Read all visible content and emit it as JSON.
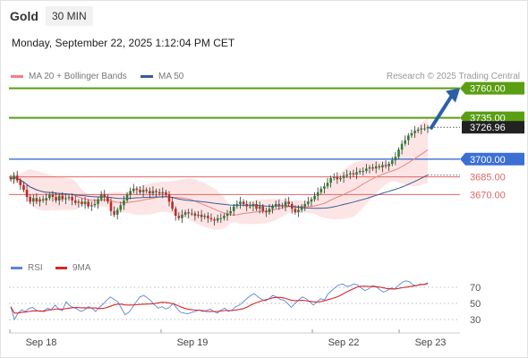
{
  "instrument": "Gold",
  "timeframe": "30 MIN",
  "datetime": "Monday, September 22, 2025 1:12:04 PM CET",
  "legend": {
    "ma20": "MA 20 + Bollinger Bands",
    "ma50": "MA 50",
    "copyright": "Research © 2025 Trading Central",
    "rsi": "RSI",
    "rsi_ma": "9MA"
  },
  "colors": {
    "resistance": "#5a9e12",
    "support_strong": "#3b6fd4",
    "support": "#e06666",
    "ma20": "#f08080",
    "ma50": "#3a5a9a",
    "band": "#fde0e0",
    "candle_up": "#2e7d32",
    "candle_down": "#c62828",
    "arrow": "#2c5fa8",
    "last_price": "#222222",
    "rsi": "#5b86d6",
    "rsi_ma": "#d62828"
  },
  "chart_data": {
    "type": "candlestick",
    "x_ticks": [
      "Sep 18",
      "Sep 19",
      "Sep 22",
      "Sep 23"
    ],
    "price_axis": {
      "min": 3615,
      "max": 3765
    },
    "levels": [
      {
        "value": 3760.0,
        "label": "3760.00",
        "kind": "resistance"
      },
      {
        "value": 3735.0,
        "label": "3735.00",
        "kind": "resistance"
      },
      {
        "value": 3700.0,
        "label": "3700.00",
        "kind": "support_strong"
      },
      {
        "value": 3685.0,
        "label": "3685.00",
        "kind": "support"
      },
      {
        "value": 3670.0,
        "label": "3670.00",
        "kind": "support"
      }
    ],
    "last_price": {
      "value": 3726.96,
      "label": "3726.96"
    },
    "close_series": [
      3683,
      3686,
      3682,
      3678,
      3674,
      3668,
      3664,
      3667,
      3664,
      3666,
      3665,
      3667,
      3670,
      3668,
      3665,
      3669,
      3666,
      3667,
      3668,
      3665,
      3663,
      3664,
      3662,
      3664,
      3660,
      3661,
      3662,
      3666,
      3670,
      3668,
      3664,
      3656,
      3653,
      3657,
      3661,
      3665,
      3670,
      3673,
      3675,
      3674,
      3672,
      3674,
      3673,
      3671,
      3673,
      3672,
      3671,
      3672,
      3670,
      3664,
      3658,
      3652,
      3650,
      3653,
      3655,
      3654,
      3654,
      3652,
      3653,
      3651,
      3652,
      3650,
      3649,
      3648,
      3650,
      3650,
      3652,
      3654,
      3656,
      3660,
      3662,
      3664,
      3662,
      3660,
      3660,
      3662,
      3658,
      3660,
      3656,
      3655,
      3658,
      3660,
      3662,
      3661,
      3660,
      3664,
      3662,
      3658,
      3655,
      3657,
      3660,
      3662,
      3664,
      3666,
      3669,
      3672,
      3675,
      3677,
      3680,
      3684,
      3685,
      3683,
      3684,
      3686,
      3687,
      3688,
      3687,
      3689,
      3690,
      3690,
      3692,
      3693,
      3692,
      3694,
      3693,
      3695,
      3694,
      3696,
      3699,
      3702,
      3708,
      3713,
      3716,
      3720,
      3722,
      3724,
      3725,
      3726,
      3726,
      3726.96
    ],
    "rsi": {
      "axis_ticks": [
        70,
        50,
        30
      ],
      "range": [
        20,
        80
      ],
      "values": [
        46,
        30,
        38,
        42,
        40,
        44,
        45,
        41,
        40,
        41,
        44,
        42,
        48,
        43,
        41,
        52,
        47,
        45,
        43,
        40,
        42,
        46,
        44,
        40,
        45,
        49,
        54,
        58,
        55,
        52,
        44,
        36,
        39,
        45,
        52,
        58,
        60,
        57,
        53,
        48,
        44,
        46,
        43,
        45,
        50,
        44,
        39,
        38,
        37,
        39,
        40,
        42,
        40,
        41,
        43,
        40,
        38,
        42,
        44,
        40,
        42,
        46,
        48,
        52,
        56,
        60,
        62,
        58,
        55,
        53,
        56,
        60,
        58,
        55,
        54,
        50,
        45,
        50,
        54,
        58,
        56,
        52,
        48,
        52,
        56,
        54,
        62,
        66,
        70,
        73,
        74,
        71,
        72,
        74,
        73,
        69,
        66,
        68,
        72,
        71,
        67,
        64,
        66,
        69,
        68,
        72,
        76,
        78,
        77,
        73,
        72,
        74,
        73,
        76
      ]
    }
  }
}
